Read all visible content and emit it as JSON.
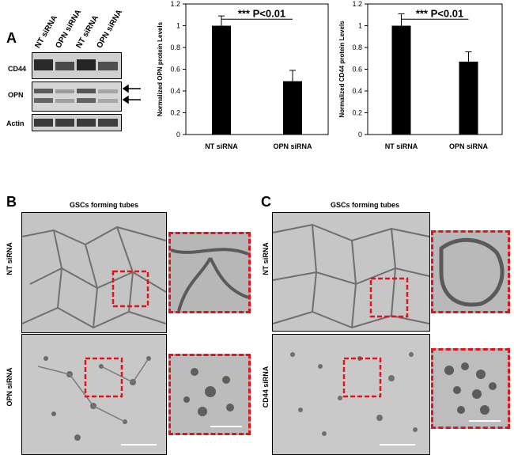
{
  "panel_a": {
    "letter": "A",
    "lanes": [
      "NT siRNA",
      "OPN siRNA",
      "NT siRNA",
      "OPN siRNA"
    ],
    "rows": [
      "CD44",
      "OPN",
      "Actin"
    ]
  },
  "panel_b": {
    "letter": "B",
    "title": "GSCs forming tubes",
    "row_labels": [
      "NT siRNA",
      "OPN siRNA"
    ]
  },
  "panel_c": {
    "letter": "C",
    "title": "GSCs forming tubes",
    "row_labels": [
      "NT siRNA",
      "CD44 siRNA"
    ]
  },
  "chart_data": [
    {
      "type": "bar",
      "categories": [
        "NT siRNA",
        "OPN siRNA"
      ],
      "values": [
        1.0,
        0.49
      ],
      "errors": [
        0.09,
        0.1
      ],
      "ylabel": "Normalized OPN protein Levels",
      "ylim": [
        0,
        1.2
      ],
      "yticks": [
        "0",
        "0.2",
        "0.4",
        "0.6",
        "0.8",
        "1",
        "1.2"
      ],
      "annotation": "*** P<0.01",
      "bar_color": "#000000"
    },
    {
      "type": "bar",
      "categories": [
        "NT siRNA",
        "OPN siRNA"
      ],
      "values": [
        1.0,
        0.67
      ],
      "errors": [
        0.11,
        0.09
      ],
      "ylabel": "Normalized CD44 protein Levels",
      "ylim": [
        0,
        1.2
      ],
      "yticks": [
        "0",
        "0.2",
        "0.4",
        "0.6",
        "0.8",
        "1",
        "1.2"
      ],
      "annotation": "*** P<0.01",
      "bar_color": "#000000"
    }
  ]
}
